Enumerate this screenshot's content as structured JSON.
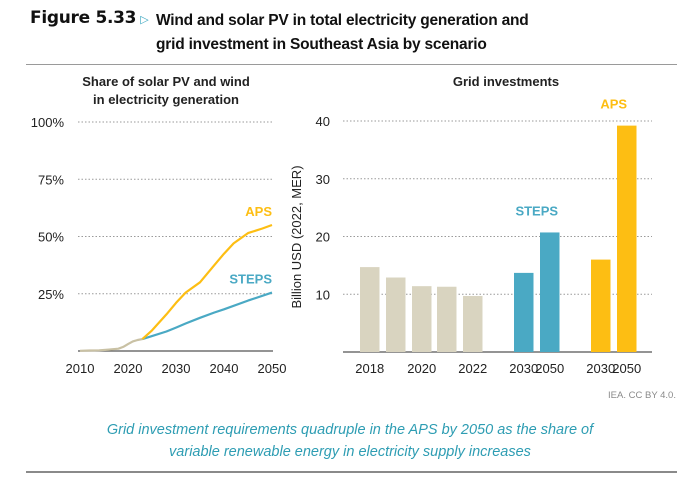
{
  "header": {
    "figure_label": "Figure 5.33",
    "arrow_icon": "triangle-right-icon",
    "title_line1": "Wind and solar PV in total electricity generation and",
    "title_line2": "grid investment in Southeast Asia by scenario"
  },
  "credit": "IEA. CC BY 4.0.",
  "caption_line1": "Grid investment requirements quadruple in the APS by 2050 as the share of",
  "caption_line2": "variable renewable energy in electricity supply increases",
  "colors": {
    "historical": "#d9d4c0",
    "historical_line": "#c9c1a4",
    "steps": "#4aa9c4",
    "aps": "#fdbe13",
    "caption": "#2e9db3"
  },
  "chart_data": [
    {
      "type": "line",
      "title": "Share of solar PV and wind in electricity generation",
      "title_line1": "Share of solar PV and wind",
      "title_line2": "in electricity generation",
      "xlabel": "",
      "ylabel": "",
      "xlim": [
        2010,
        2050
      ],
      "ylim": [
        0,
        100
      ],
      "x_ticks": [
        "2010",
        "2020",
        "2030",
        "2040",
        "2050"
      ],
      "y_ticks": [
        "25%",
        "50%",
        "75%",
        "100%"
      ],
      "y_tick_values": [
        25,
        50,
        75,
        100
      ],
      "grid": true,
      "series": [
        {
          "name": "Historical",
          "color_key": "historical_line",
          "x": [
            2010,
            2012,
            2014,
            2016,
            2018,
            2019,
            2020,
            2021,
            2022,
            2023
          ],
          "y": [
            0.1,
            0.2,
            0.3,
            0.6,
            1.0,
            1.8,
            3.0,
            4.2,
            4.8,
            5.2
          ]
        },
        {
          "name": "APS",
          "label": "APS",
          "color_key": "aps",
          "x": [
            2023,
            2025,
            2028,
            2030,
            2032,
            2035,
            2038,
            2040,
            2042,
            2045,
            2048,
            2050
          ],
          "y": [
            5.2,
            9.0,
            16.0,
            21.0,
            25.5,
            30.0,
            37.5,
            42.5,
            47.0,
            51.5,
            53.5,
            55.0
          ]
        },
        {
          "name": "STEPS",
          "label": "STEPS",
          "color_key": "steps",
          "x": [
            2023,
            2025,
            2028,
            2030,
            2032,
            2035,
            2038,
            2040,
            2045,
            2050
          ],
          "y": [
            5.2,
            6.5,
            8.5,
            10.2,
            12.0,
            14.5,
            16.8,
            18.2,
            22.0,
            25.5
          ]
        }
      ]
    },
    {
      "type": "bar",
      "title": "Grid investments",
      "xlabel": "",
      "ylabel": "Billion USD (2022, MER)",
      "ylim": [
        0,
        40
      ],
      "y_ticks": [
        "10",
        "20",
        "30",
        "40"
      ],
      "y_tick_values": [
        10,
        20,
        30,
        40
      ],
      "grid": true,
      "categories": [
        "2018",
        "2019",
        "2020",
        "2021",
        "2022",
        "2030",
        "2050",
        "2030",
        "2050"
      ],
      "x_tick_labels": [
        "2018",
        "",
        "2020",
        "",
        "2022",
        "2030",
        "2050",
        "2030",
        "2050"
      ],
      "groups": [
        "Historical",
        "Historical",
        "Historical",
        "Historical",
        "Historical",
        "STEPS",
        "STEPS",
        "APS",
        "APS"
      ],
      "values": [
        14.7,
        12.9,
        11.4,
        11.3,
        9.7,
        13.7,
        20.7,
        16.0,
        39.2
      ],
      "series_labels": [
        {
          "name": "STEPS",
          "label": "STEPS",
          "color_key": "steps"
        },
        {
          "name": "APS",
          "label": "APS",
          "color_key": "aps"
        }
      ]
    }
  ]
}
